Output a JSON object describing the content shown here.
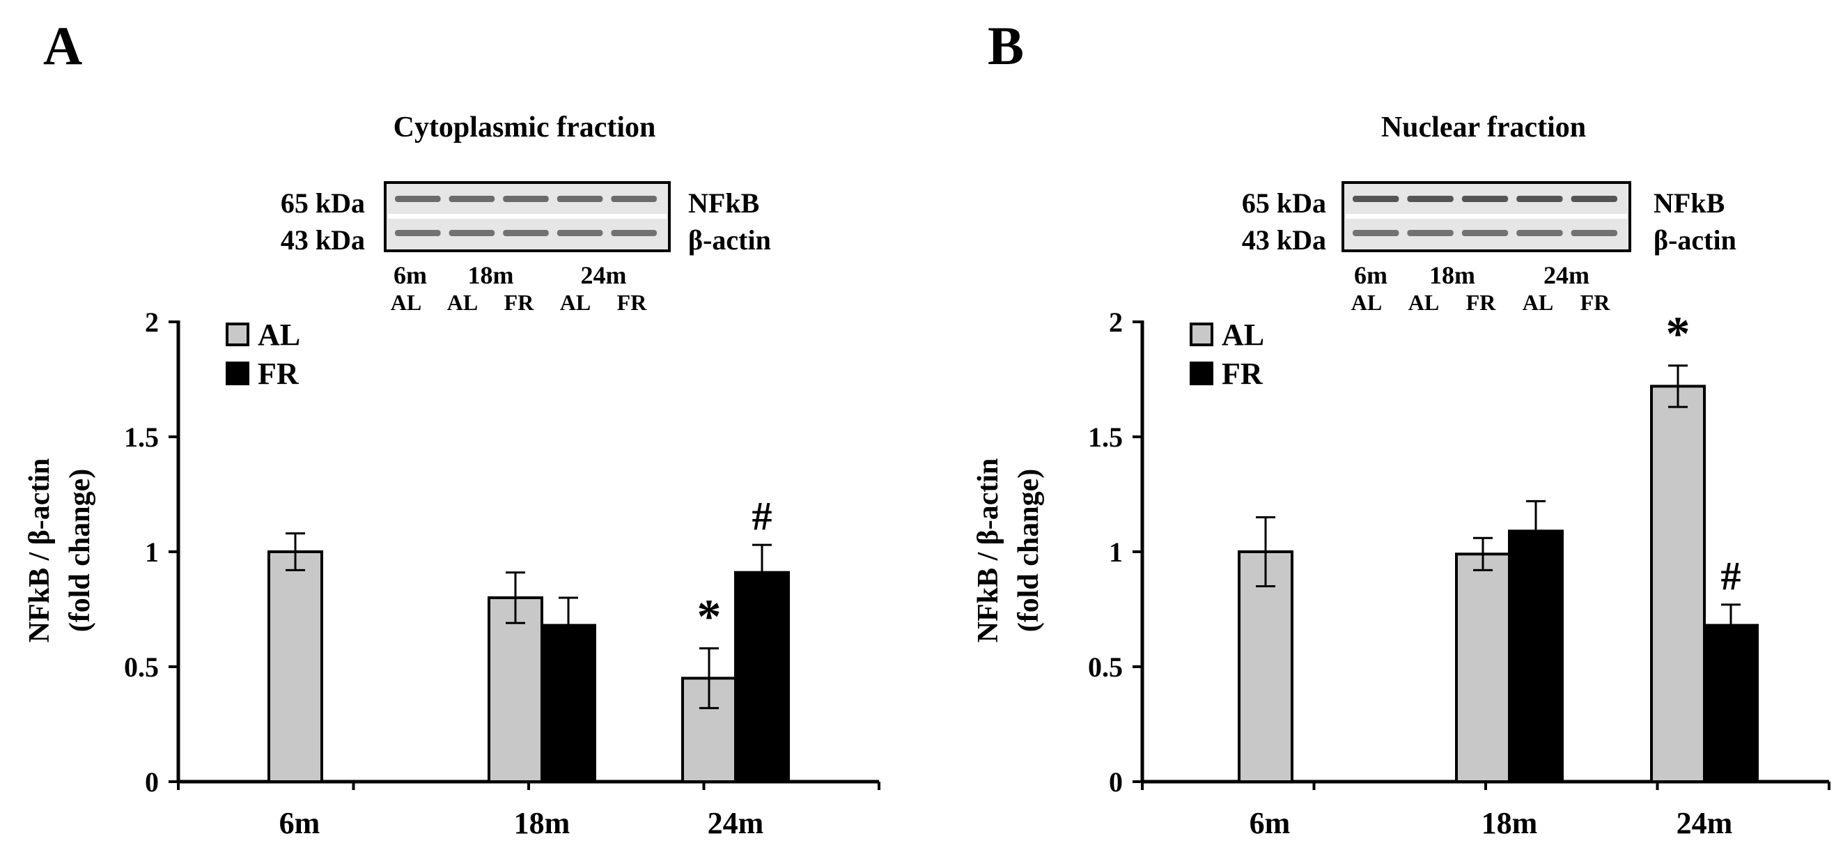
{
  "chart_data": [
    {
      "panel_label": "A",
      "type": "bar",
      "title": "Cytoplasmic fraction",
      "blot": {
        "left_labels": [
          "65 kDa",
          "43 kDa"
        ],
        "right_labels": [
          "NFkB",
          "β-actin"
        ],
        "age_labels": [
          "6m",
          "18m",
          "24m"
        ],
        "lane_labels": [
          "AL",
          "AL",
          "FR",
          "AL",
          "FR"
        ]
      },
      "categories": [
        "6m",
        "18m",
        "24m"
      ],
      "ylabel_lines": [
        "NFkB / β-actin",
        "(fold change)"
      ],
      "xlabel": "",
      "ylim": [
        0,
        2
      ],
      "yticks": [
        "0",
        "0.5",
        "1",
        "1.5",
        "2"
      ],
      "legend_position": "top-left",
      "series": [
        {
          "name": "AL",
          "color": "#c8c8c8",
          "values": [
            1.0,
            0.8,
            0.45
          ],
          "errors": [
            0.08,
            0.11,
            0.13
          ],
          "annotations": [
            "",
            "",
            "*"
          ]
        },
        {
          "name": "FR",
          "color": "#000000",
          "values": [
            null,
            0.68,
            0.91
          ],
          "errors": [
            null,
            0.12,
            0.12
          ],
          "annotations": [
            "",
            "",
            "#"
          ]
        }
      ]
    },
    {
      "panel_label": "B",
      "type": "bar",
      "title": "Nuclear fraction",
      "blot": {
        "left_labels": [
          "65 kDa",
          "43 kDa"
        ],
        "right_labels": [
          "NFkB",
          "β-actin"
        ],
        "age_labels": [
          "6m",
          "18m",
          "24m"
        ],
        "lane_labels": [
          "AL",
          "AL",
          "FR",
          "AL",
          "FR"
        ]
      },
      "categories": [
        "6m",
        "18m",
        "24m"
      ],
      "ylabel_lines": [
        "NFkB / β-actin",
        "(fold change)"
      ],
      "xlabel": "",
      "ylim": [
        0,
        2
      ],
      "yticks": [
        "0",
        "0.5",
        "1",
        "1.5",
        "2"
      ],
      "legend_position": "top-left",
      "series": [
        {
          "name": "AL",
          "color": "#c8c8c8",
          "values": [
            1.0,
            0.99,
            1.72
          ],
          "errors": [
            0.15,
            0.07,
            0.09
          ],
          "annotations": [
            "",
            "",
            "*"
          ]
        },
        {
          "name": "FR",
          "color": "#000000",
          "values": [
            null,
            1.09,
            0.68
          ],
          "errors": [
            null,
            0.13,
            0.09
          ],
          "annotations": [
            "",
            "",
            "#"
          ]
        }
      ]
    }
  ]
}
